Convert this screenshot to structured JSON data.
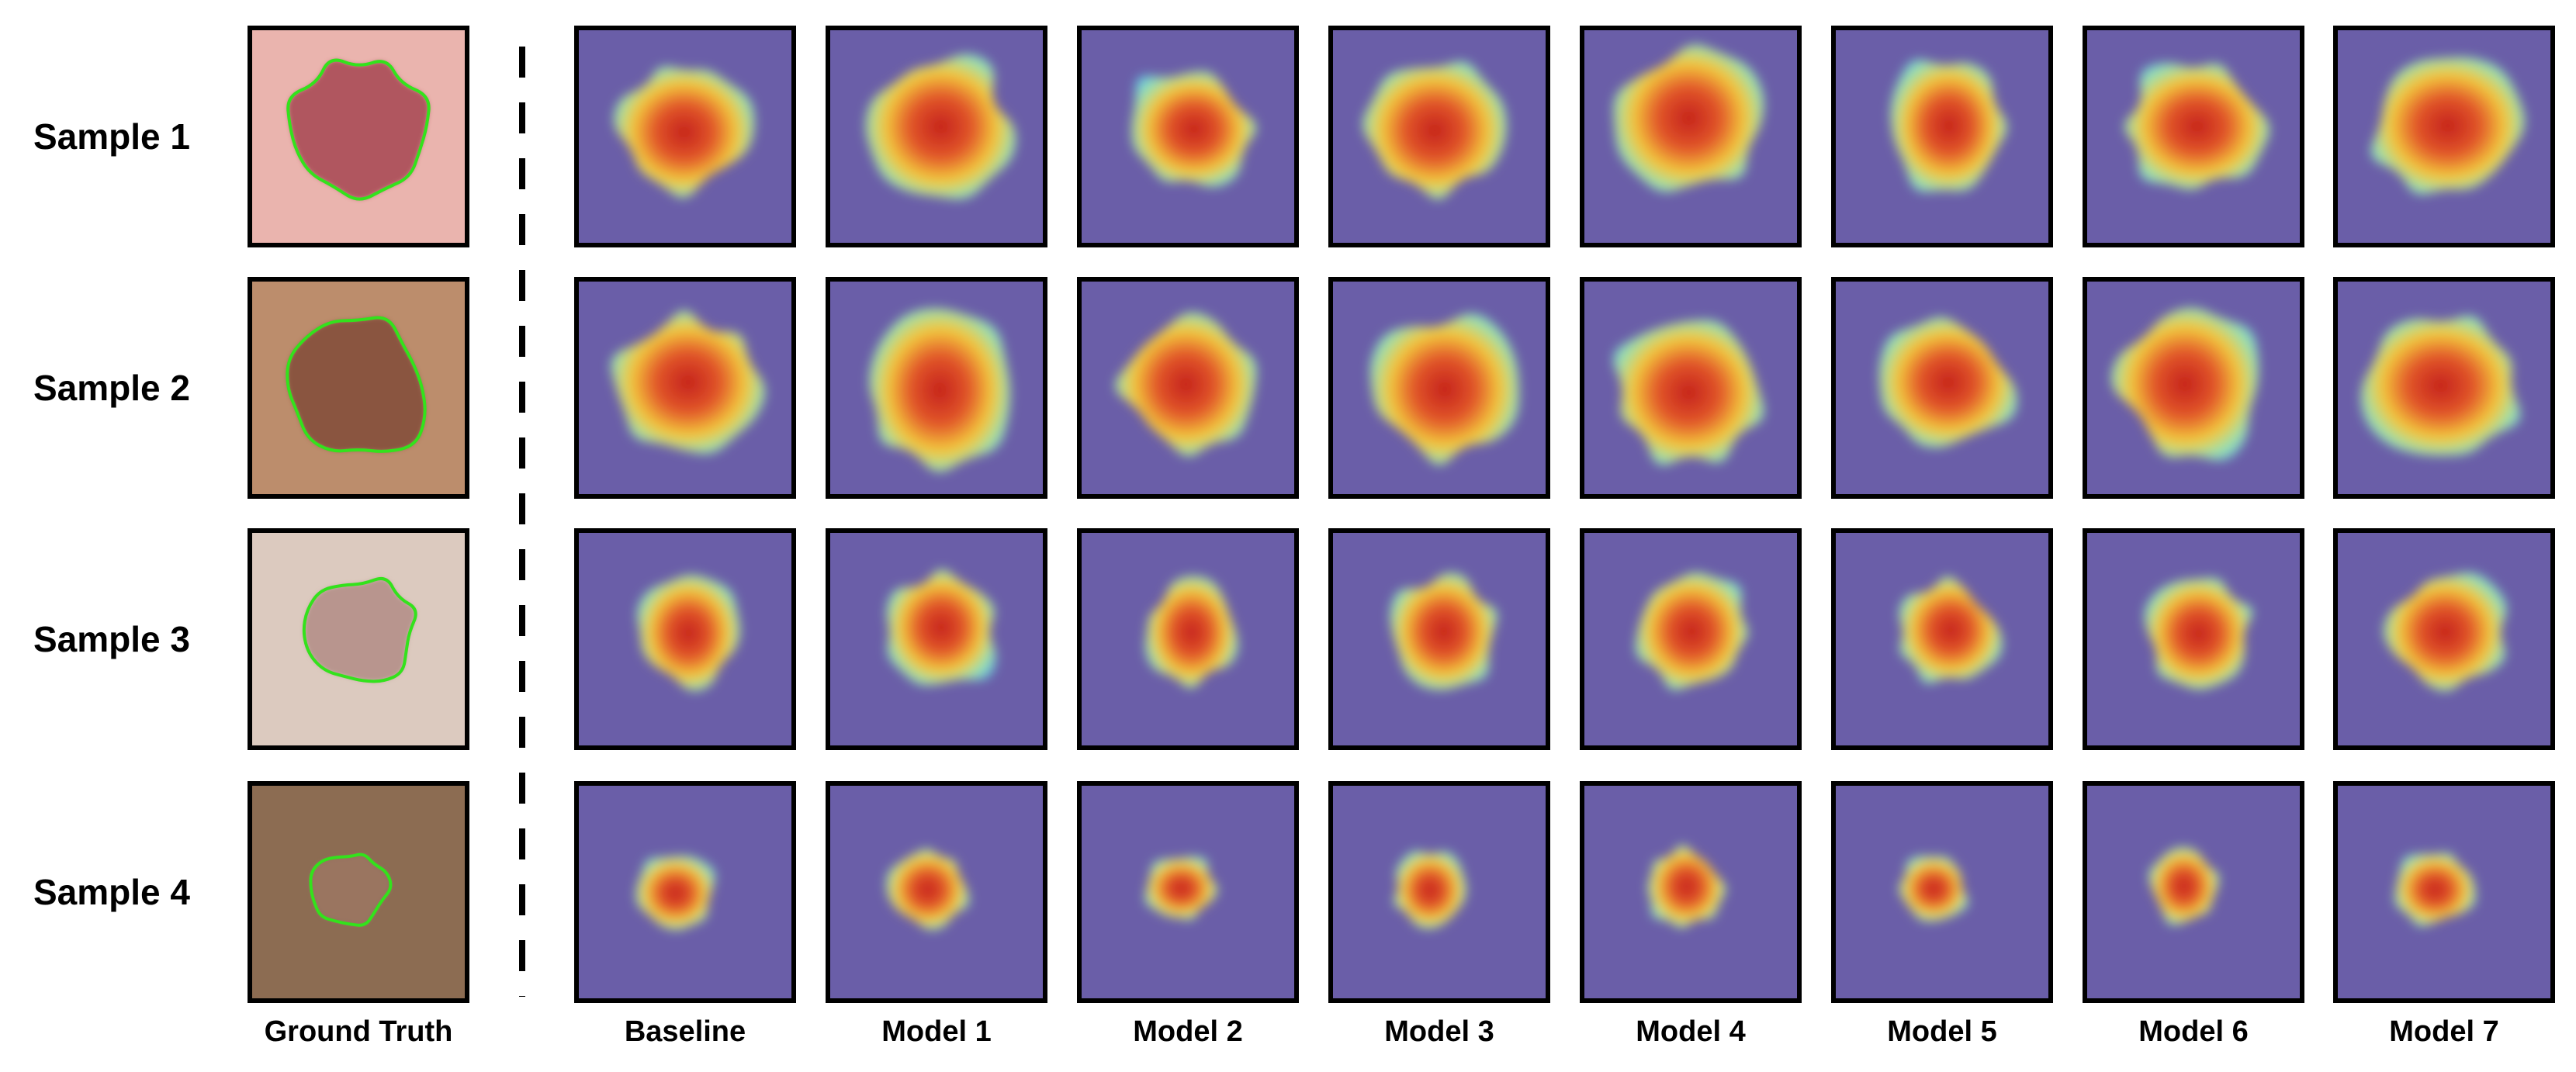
{
  "row_labels": [
    "Sample 1",
    "Sample 2",
    "Sample 3",
    "Sample 4"
  ],
  "column_labels": [
    "Ground Truth",
    "Baseline",
    "Model 1",
    "Model 2",
    "Model 3",
    "Model 4",
    "Model 5",
    "Model 6",
    "Model 7"
  ]
}
